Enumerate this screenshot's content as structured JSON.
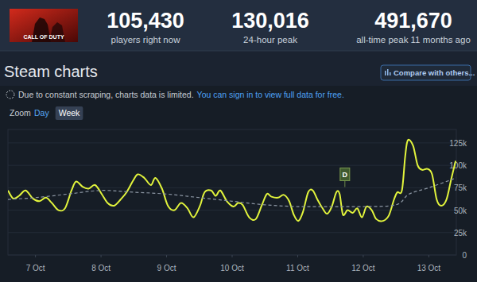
{
  "page": {
    "game_logo": "CALL OF DUTY",
    "stats": [
      {
        "value": "105,430",
        "label": "players right now"
      },
      {
        "value": "130,016",
        "label": "24-hour peak"
      },
      {
        "value": "491,670",
        "label": "all-time peak 11 months ago"
      }
    ],
    "title": "Steam charts",
    "compare_button": "Compare with others...",
    "notice": "Due to constant scraping, charts data is limited.",
    "notice_link": "You can sign in to view full data for free.",
    "zoom_label": "Zoom",
    "zoom_options": [
      "Day",
      "Week"
    ],
    "zoom_selected": "Week"
  },
  "chart_data": {
    "type": "line",
    "grid": true,
    "xlim": [
      6.58,
      13.42
    ],
    "xticks": [
      {
        "value": 7,
        "label": "7 Oct"
      },
      {
        "value": 8,
        "label": "8 Oct"
      },
      {
        "value": 9,
        "label": "9 Oct"
      },
      {
        "value": 10,
        "label": "10 Oct"
      },
      {
        "value": 11,
        "label": "11 Oct"
      },
      {
        "value": 12,
        "label": "12 Oct"
      },
      {
        "value": 13,
        "label": "13 Oct"
      }
    ],
    "ylim": [
      0,
      140000
    ],
    "yticks": [
      0,
      {
        "value": 25000,
        "label": "25k"
      },
      {
        "value": 50000,
        "label": "50k"
      },
      {
        "value": 75000,
        "label": "75k"
      },
      {
        "value": 100000,
        "label": "100k"
      },
      {
        "value": 125000,
        "label": "125k"
      }
    ],
    "series": [
      {
        "color": "#e2f43c",
        "line_style": "solid",
        "x": [
          6.58,
          6.66,
          6.75,
          6.85,
          6.96,
          7.06,
          7.16,
          7.25,
          7.35,
          7.45,
          7.55,
          7.62,
          7.72,
          7.81,
          7.91,
          8.01,
          8.1,
          8.2,
          8.3,
          8.39,
          8.49,
          8.56,
          8.66,
          8.76,
          8.83,
          8.93,
          9.02,
          9.12,
          9.22,
          9.32,
          9.41,
          9.51,
          9.58,
          9.68,
          9.75,
          9.82,
          9.92,
          10.02,
          10.09,
          10.16,
          10.26,
          10.36,
          10.45,
          10.53,
          10.6,
          10.7,
          10.79,
          10.87,
          10.94,
          11.01,
          11.08,
          11.16,
          11.23,
          11.3,
          11.38,
          11.45,
          11.52,
          11.59,
          11.64,
          11.69,
          11.76,
          11.84,
          11.91,
          11.98,
          12.05,
          12.13,
          12.2,
          12.3,
          12.39,
          12.47,
          12.52,
          12.59,
          12.64,
          12.68,
          12.76,
          12.83,
          12.9,
          12.98,
          13.05,
          13.12,
          13.19,
          13.27,
          13.34,
          13.41
        ],
        "values": [
          72000,
          63000,
          66000,
          72000,
          63000,
          60000,
          64000,
          58000,
          50000,
          52000,
          72000,
          82000,
          76000,
          74000,
          78000,
          68000,
          58000,
          55000,
          62000,
          70000,
          83000,
          90000,
          86000,
          78000,
          86000,
          74000,
          55000,
          50000,
          58000,
          52000,
          42000,
          55000,
          70000,
          72000,
          66000,
          72000,
          60000,
          54000,
          58000,
          56000,
          42000,
          40000,
          55000,
          68000,
          65000,
          64000,
          67000,
          60000,
          45000,
          38000,
          48000,
          70000,
          72000,
          62000,
          52000,
          46000,
          54000,
          70000,
          68000,
          45000,
          50000,
          47000,
          52000,
          42000,
          54000,
          50000,
          40000,
          38000,
          44000,
          62000,
          70000,
          72000,
          110000,
          128000,
          122000,
          100000,
          95000,
          96000,
          90000,
          62000,
          55000,
          62000,
          84000,
          105000
        ]
      },
      {
        "color": "#8b95a2",
        "line_style": "dashed",
        "x": [
          6.58,
          7.0,
          7.5,
          8.0,
          8.5,
          9.0,
          9.5,
          10.0,
          10.5,
          11.0,
          11.5,
          12.0,
          12.5,
          12.7,
          13.0,
          13.42
        ],
        "values": [
          62000,
          64000,
          68000,
          72000,
          70000,
          68000,
          64000,
          60000,
          56000,
          54000,
          54000,
          54000,
          56000,
          68000,
          75000,
          86000
        ]
      }
    ],
    "annotations": [
      {
        "text": "D",
        "x": 11.72,
        "y": 90000
      }
    ]
  }
}
